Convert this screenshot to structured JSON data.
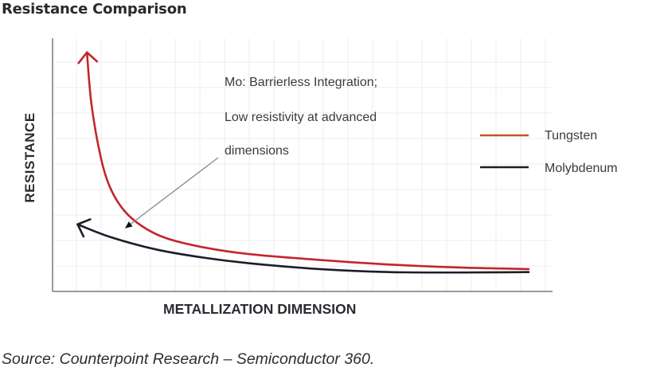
{
  "chart_data": {
    "type": "line",
    "title": "Resistance Comparison",
    "xlabel": "METALLIZATION DIMENSION",
    "ylabel": "RESISTANCE",
    "x_ticks_shown": false,
    "y_ticks_shown": false,
    "grid": true,
    "xlim": [
      0,
      10
    ],
    "ylim": [
      0,
      10
    ],
    "legend_position": "right",
    "series": [
      {
        "name": "Tungsten",
        "color": "#c0272d",
        "legend_color": "#c8502e",
        "arrow_at_start": true,
        "x": [
          0.5,
          0.6,
          0.8,
          1.0,
          1.3,
          1.7,
          2.2,
          3.0,
          4.0,
          5.5,
          7.0,
          8.5,
          10.0
        ],
        "y": [
          9.8,
          7.5,
          5.2,
          3.9,
          2.9,
          2.2,
          1.7,
          1.3,
          1.0,
          0.75,
          0.55,
          0.42,
          0.35
        ]
      },
      {
        "name": "Molybdenum",
        "color": "#1c1c2a",
        "legend_color": "#1c1c2a",
        "arrow_at_start": true,
        "x": [
          0.3,
          1.0,
          2.0,
          3.0,
          4.0,
          5.5,
          7.0,
          8.5,
          10.0
        ],
        "y": [
          2.3,
          1.75,
          1.2,
          0.85,
          0.6,
          0.35,
          0.22,
          0.2,
          0.22
        ]
      }
    ],
    "annotation": {
      "lines": [
        "Mo: Barrierless Integration;",
        "Low resistivity at advanced",
        "dimensions"
      ],
      "points_to_series": "Molybdenum"
    }
  },
  "source": "Source: Counterpoint Research – Semiconductor 360."
}
